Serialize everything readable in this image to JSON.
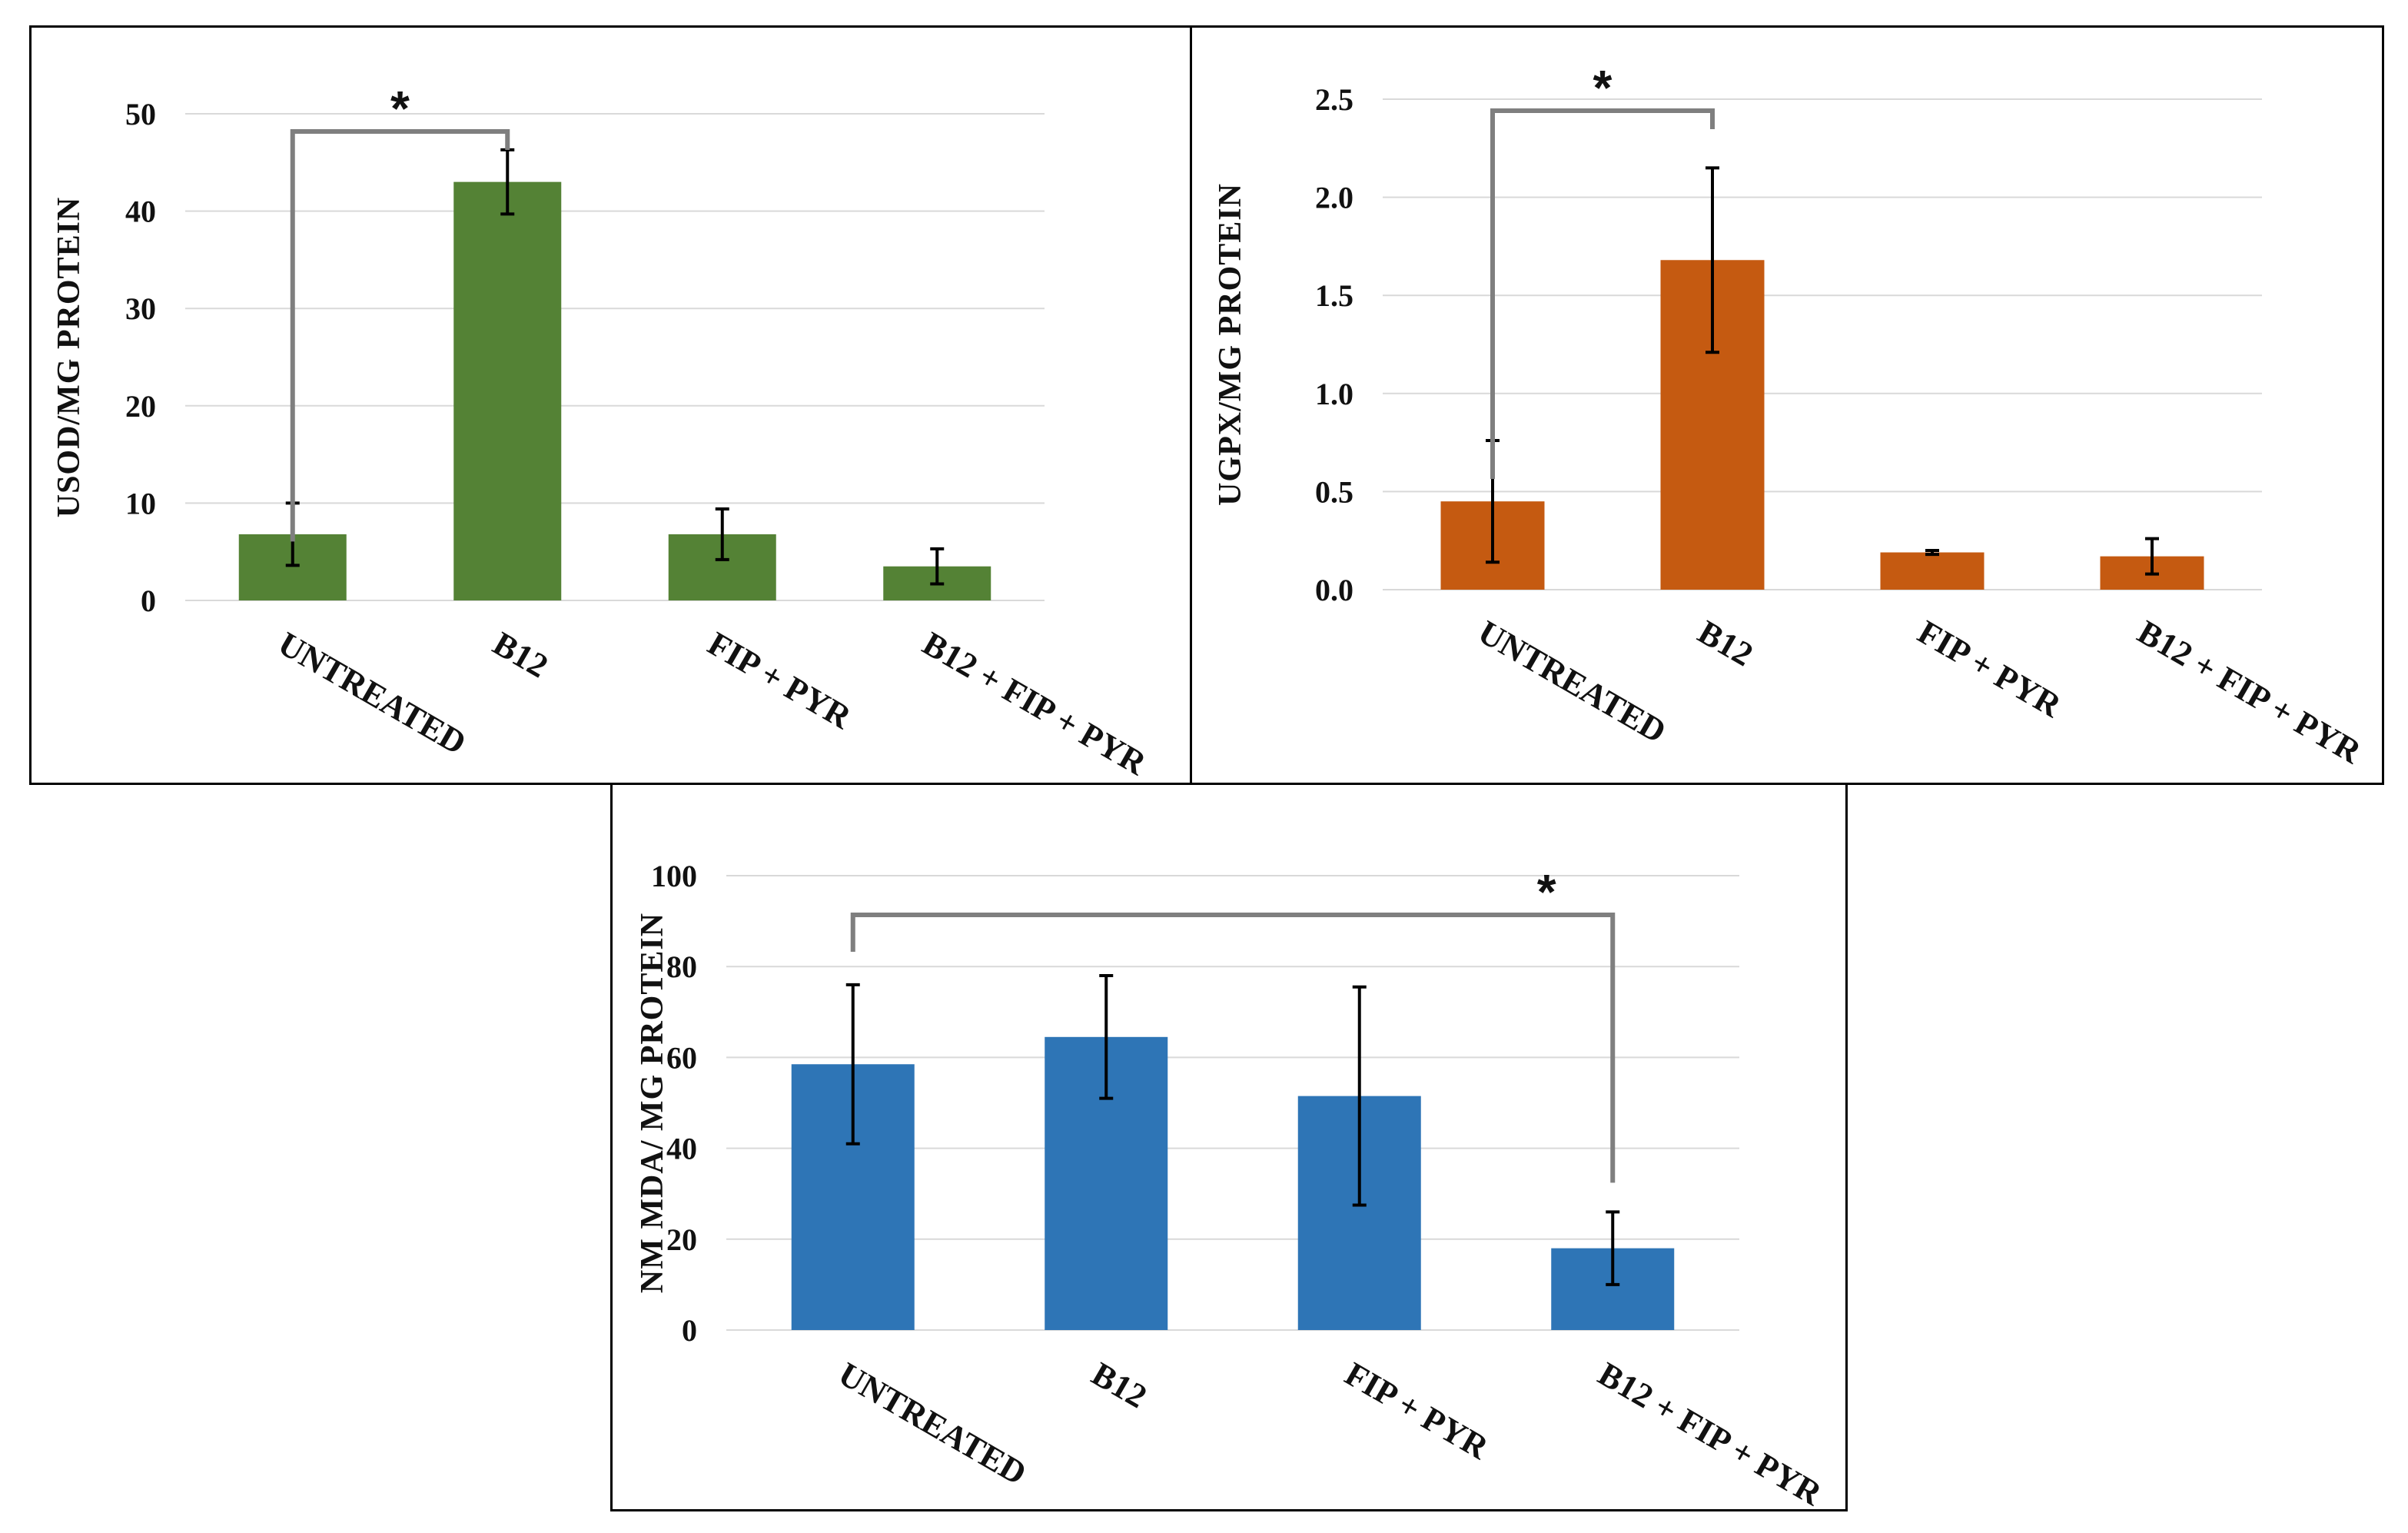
{
  "chart_data": [
    {
      "type": "bar",
      "categories": [
        "UNTREATED",
        "B12",
        "FIP + PYR",
        "B12 + FIP + PYR"
      ],
      "values": [
        6.8,
        43.0,
        6.8,
        3.5
      ],
      "error": [
        3.2,
        3.3,
        2.6,
        1.8
      ],
      "ylabel": "USOD/MG PROTEIN",
      "ylim": [
        0,
        50
      ],
      "yticks": [
        "0",
        "10",
        "20",
        "30",
        "40",
        "50"
      ],
      "ytick_values": [
        0,
        10,
        20,
        30,
        40,
        50
      ],
      "color": "#548235",
      "significance": {
        "from": 0,
        "to": 1,
        "label": "*"
      }
    },
    {
      "type": "bar",
      "categories": [
        "UNTREATED",
        "B12",
        "FIP + PYR",
        "B12 + FIP + PYR"
      ],
      "values": [
        0.45,
        1.68,
        0.19,
        0.17
      ],
      "error": [
        0.31,
        0.47,
        0.01,
        0.09
      ],
      "ylabel": "UGPX/MG PROTEIN",
      "ylim": [
        0,
        2.5
      ],
      "yticks": [
        "0.0",
        "0.5",
        "1.0",
        "1.5",
        "2.0",
        "2.5"
      ],
      "ytick_values": [
        0,
        0.5,
        1.0,
        1.5,
        2.0,
        2.5
      ],
      "color": "#C55A11",
      "significance": {
        "from": 0,
        "to": 1,
        "label": "*"
      }
    },
    {
      "type": "bar",
      "categories": [
        "UNTREATED",
        "B12",
        "FIP + PYR",
        "B12 + FIP + PYR"
      ],
      "values": [
        58.5,
        64.5,
        51.5,
        18.0
      ],
      "error": [
        17.5,
        13.5,
        24.0,
        8.0
      ],
      "ylabel": "NM MDA/ MG PROTEIN",
      "ylim": [
        0,
        100
      ],
      "yticks": [
        "0",
        "20",
        "40",
        "60",
        "80",
        "100"
      ],
      "ytick_values": [
        0,
        20,
        40,
        60,
        80,
        100
      ],
      "color": "#2E75B6",
      "significance": {
        "from": 0,
        "to": 3,
        "label": "*"
      }
    }
  ]
}
